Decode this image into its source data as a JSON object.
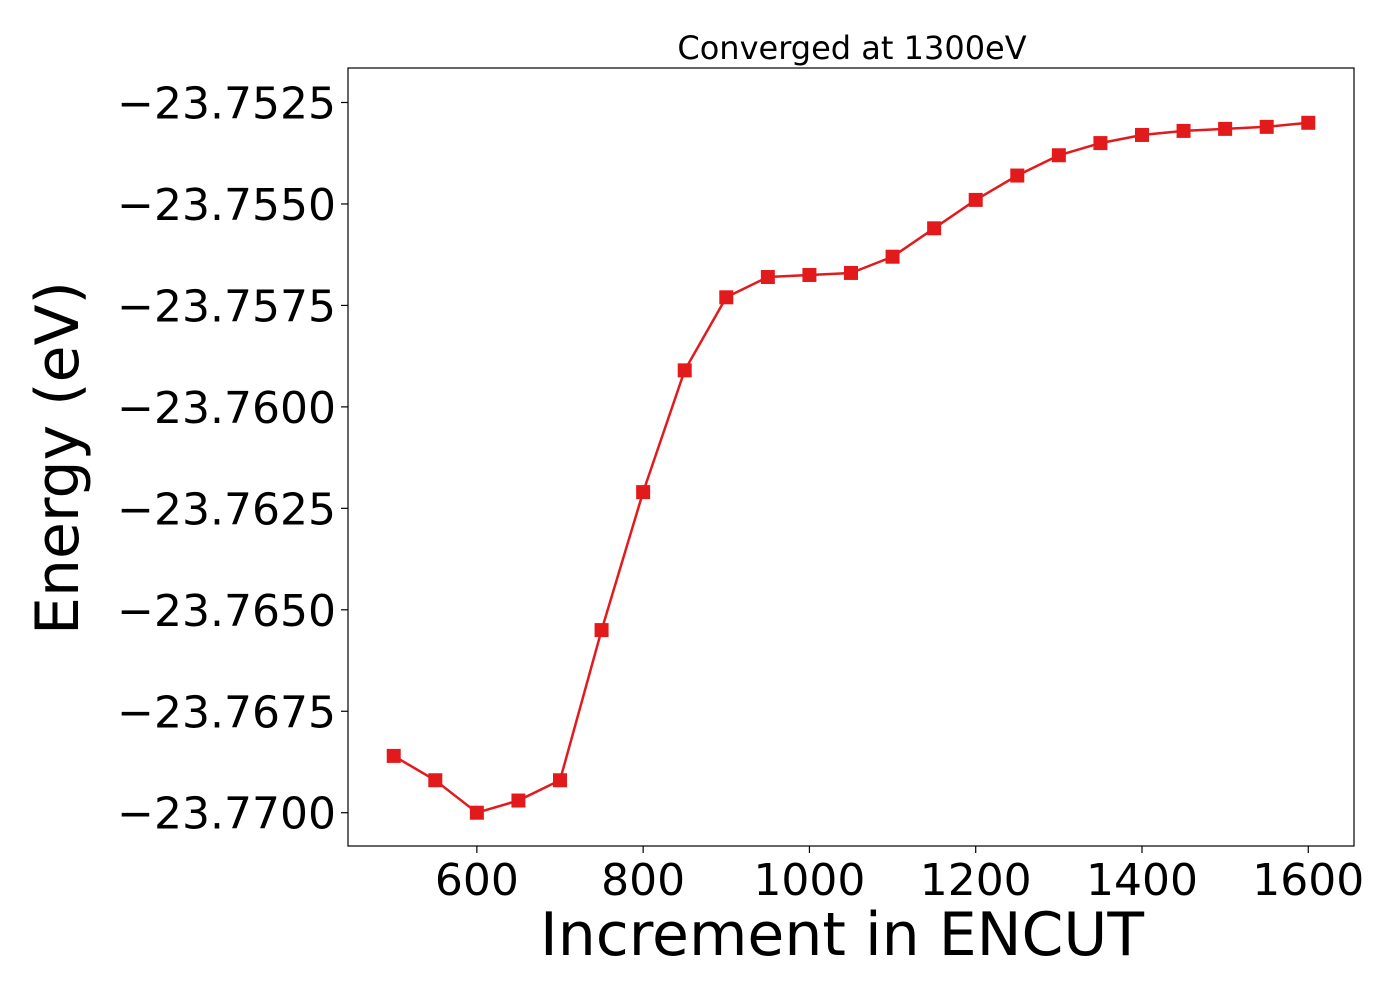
{
  "chart_data": {
    "type": "line",
    "title": "Converged at 1300eV",
    "xlabel": "Increment in ENCUT",
    "ylabel": "Energy (eV)",
    "xlim": [
      445,
      1655
    ],
    "ylim": [
      -23.77082,
      -23.75165
    ],
    "xticks": [
      600,
      800,
      1000,
      1200,
      1400,
      1600
    ],
    "xtick_labels": [
      "600",
      "800",
      "1000",
      "1200",
      "1400",
      "1600"
    ],
    "yticks": [
      -23.7525,
      -23.755,
      -23.7575,
      -23.76,
      -23.7625,
      -23.765,
      -23.7675,
      -23.77
    ],
    "ytick_labels": [
      "−23.7525",
      "−23.7550",
      "−23.7575",
      "−23.7600",
      "−23.7625",
      "−23.7650",
      "−23.7675",
      "−23.7700"
    ],
    "grid": false,
    "series": [
      {
        "color": "#e31a1c",
        "marker": "square",
        "x": [
          500,
          550,
          600,
          650,
          700,
          750,
          800,
          850,
          900,
          950,
          1000,
          1050,
          1100,
          1150,
          1200,
          1250,
          1300,
          1350,
          1400,
          1450,
          1500,
          1550,
          1600
        ],
        "y": [
          -23.7686,
          -23.7692,
          -23.77,
          -23.7697,
          -23.7692,
          -23.7655,
          -23.7621,
          -23.7591,
          -23.7573,
          -23.7568,
          -23.75675,
          -23.7567,
          -23.7563,
          -23.7556,
          -23.7549,
          -23.7543,
          -23.7538,
          -23.7535,
          -23.7533,
          -23.7532,
          -23.75315,
          -23.7531,
          -23.753
        ]
      }
    ]
  }
}
